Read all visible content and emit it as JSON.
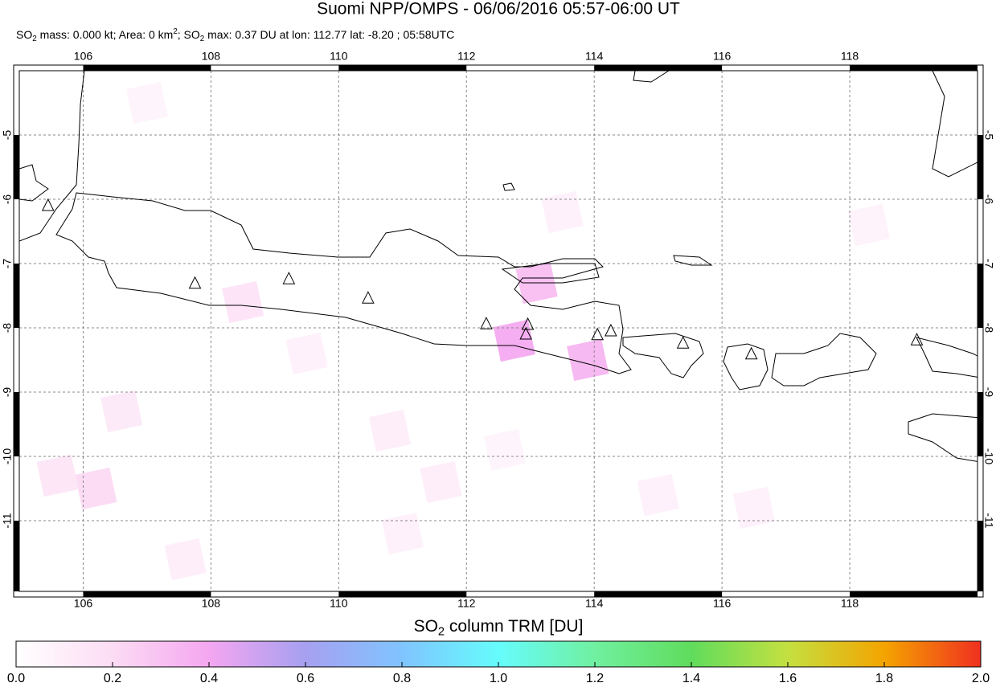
{
  "chart_data": {
    "type": "map",
    "title": "Suomi NPP/OMPS - 06/06/2016 05:57-06:00 UT",
    "subtitle": [
      {
        "text": "SO"
      },
      {
        "sub": "2"
      },
      {
        "text": " mass: 0.000 kt; Area: 0 km"
      },
      {
        "sup": "2"
      },
      {
        "text": "; SO"
      },
      {
        "sub": "2"
      },
      {
        "text": " max: 0.37 DU at lon: 112.77 lat: -8.20 ; 05:58UTC"
      }
    ],
    "xlim": [
      105,
      120
    ],
    "ylim": [
      -12.1,
      -4
    ],
    "xticks": [
      106,
      108,
      110,
      112,
      114,
      116,
      118
    ],
    "yticks": [
      -5,
      -6,
      -7,
      -8,
      -9,
      -10,
      -11
    ],
    "grid": true,
    "volcanoes": [
      [
        105.45,
        -6.1
      ],
      [
        107.75,
        -7.31
      ],
      [
        109.22,
        -7.24
      ],
      [
        110.46,
        -7.54
      ],
      [
        112.31,
        -7.94
      ],
      [
        112.96,
        -7.95
      ],
      [
        112.93,
        -8.1
      ],
      [
        114.05,
        -8.11
      ],
      [
        114.26,
        -8.05
      ],
      [
        115.39,
        -8.24
      ],
      [
        116.46,
        -8.41
      ],
      [
        119.05,
        -8.19
      ]
    ],
    "so2_pixels": [
      [
        112.75,
        -8.2,
        0.37
      ],
      [
        113.9,
        -8.5,
        0.33
      ],
      [
        113.1,
        -7.3,
        0.3
      ],
      [
        106.2,
        -10.5,
        0.2
      ],
      [
        108.5,
        -7.6,
        0.15
      ],
      [
        106.6,
        -9.3,
        0.12
      ],
      [
        110.8,
        -9.6,
        0.1
      ],
      [
        111.6,
        -10.4,
        0.1
      ],
      [
        107.6,
        -11.6,
        0.1
      ],
      [
        105.6,
        -10.3,
        0.14
      ],
      [
        109.5,
        -8.4,
        0.08
      ],
      [
        113.5,
        -6.2,
        0.08
      ],
      [
        115.0,
        -10.6,
        0.08
      ],
      [
        116.5,
        -10.8,
        0.08
      ],
      [
        107.0,
        -4.5,
        0.06
      ],
      [
        118.3,
        -6.4,
        0.07
      ],
      [
        111.0,
        -11.2,
        0.08
      ],
      [
        112.6,
        -9.9,
        0.06
      ]
    ],
    "colorbar": {
      "label": [
        {
          "text": "SO"
        },
        {
          "sub": "2"
        },
        {
          "text": " column TRM [DU]"
        }
      ],
      "clim": [
        0,
        2
      ],
      "colormap": [
        "#ffffff",
        "#fcdcf4",
        "#f4a6f0",
        "#a6a0f0",
        "#80c4ff",
        "#66fcfc",
        "#70f0a0",
        "#60dc5c",
        "#c4e040",
        "#f4a400",
        "#f03020"
      ],
      "ticks": [
        {
          "value": 0,
          "label": "0.0"
        },
        {
          "value": 0.2,
          "label": "0.2"
        },
        {
          "value": 0.4,
          "label": "0.4"
        },
        {
          "value": 0.6,
          "label": "0.6"
        },
        {
          "value": 0.8,
          "label": "0.8"
        },
        {
          "value": 1,
          "label": "1.0"
        },
        {
          "value": 1.2,
          "label": "1.2"
        },
        {
          "value": 1.4,
          "label": "1.4"
        },
        {
          "value": 1.6,
          "label": "1.6"
        },
        {
          "value": 1.8,
          "label": "1.8"
        },
        {
          "value": 2,
          "label": "2.0"
        }
      ]
    }
  }
}
